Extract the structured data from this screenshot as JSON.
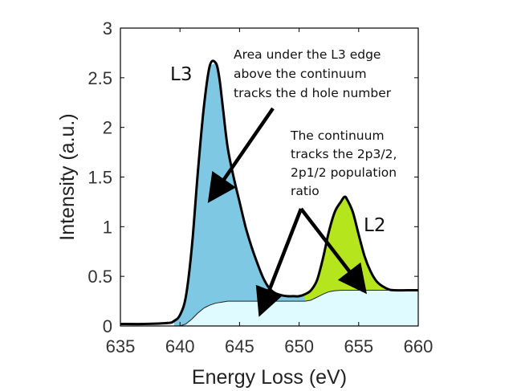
{
  "chart_data": {
    "type": "area",
    "xlabel": "Energy Loss (eV)",
    "ylabel": "Intensity (a.u.)",
    "xlim": [
      635,
      660
    ],
    "ylim": [
      0,
      3
    ],
    "xticks": [
      "635",
      "640",
      "645",
      "650",
      "655",
      "660"
    ],
    "yticks": [
      "0",
      "0.5",
      "1",
      "1.5",
      "2",
      "2.5",
      "3"
    ],
    "grid": false,
    "legend": "none",
    "series": [
      {
        "x": [
          635,
          637,
          639,
          639.5,
          640,
          640.5,
          641,
          641.5,
          642,
          642.5,
          643,
          643.3,
          643.6,
          644,
          644.5,
          645,
          645.5,
          646,
          646.5,
          647,
          647.5,
          648,
          648.5,
          649,
          649.5,
          650,
          650.5,
          651,
          651.5,
          652,
          652.5,
          653,
          653.5,
          653.8,
          654,
          654.5,
          655,
          655.5,
          656,
          656.5,
          657,
          657.5,
          658,
          660
        ],
        "values": [
          0.02,
          0.02,
          0.03,
          0.05,
          0.11,
          0.3,
          0.8,
          1.55,
          2.2,
          2.62,
          2.65,
          2.5,
          2.2,
          1.8,
          1.5,
          1.25,
          1.0,
          0.8,
          0.63,
          0.48,
          0.38,
          0.33,
          0.31,
          0.3,
          0.3,
          0.3,
          0.32,
          0.36,
          0.46,
          0.68,
          0.95,
          1.15,
          1.25,
          1.3,
          1.28,
          1.15,
          0.92,
          0.7,
          0.55,
          0.45,
          0.4,
          0.37,
          0.36,
          0.36
        ]
      },
      {
        "x": [
          635,
          640,
          640.5,
          641,
          641.5,
          642,
          642.5,
          643,
          643.5,
          644,
          650.5,
          651,
          651.5,
          652,
          652.5,
          653,
          653.5,
          660
        ],
        "values": [
          0.0,
          0.0,
          0.02,
          0.07,
          0.13,
          0.18,
          0.21,
          0.23,
          0.24,
          0.25,
          0.25,
          0.26,
          0.29,
          0.32,
          0.345,
          0.355,
          0.36,
          0.36
        ]
      }
    ],
    "fills": {
      "l3": "#7ec8e3",
      "l2": "#b5e61d",
      "continuum": "#e0fbff",
      "curve": "#000000"
    },
    "annotations": {
      "l3_label": "L3",
      "l2_label": "L2",
      "note1": [
        "Area under the L3 edge",
        "above the continuum",
        "tracks the d hole number"
      ],
      "note2": [
        "The continuum",
        "tracks the 2p3/2,",
        "2p1/2 population",
        "ratio"
      ]
    }
  }
}
